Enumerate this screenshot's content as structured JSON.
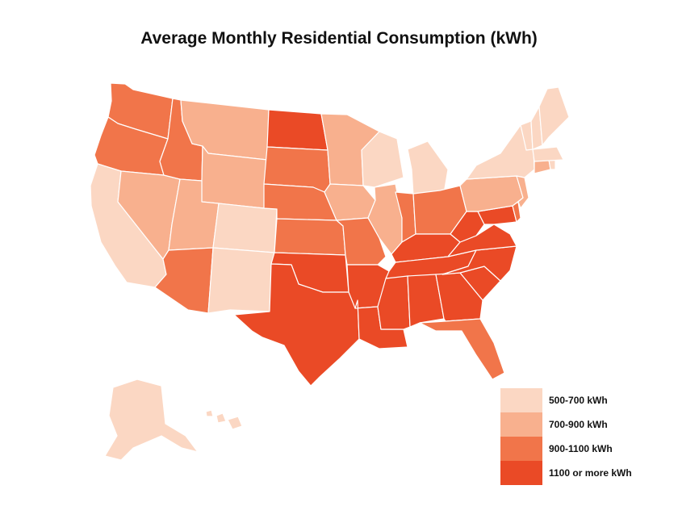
{
  "title": "Average Monthly Residential Consumption (kWh)",
  "colors": {
    "c1": "#fbd7c3",
    "c2": "#f8b08e",
    "c3": "#f1754a",
    "c4": "#ea4a26",
    "bg": "#ffffff",
    "border": "#ffffff"
  },
  "legend": [
    {
      "label": "500-700 kWh",
      "color_key": "c1"
    },
    {
      "label": "700-900 kWh",
      "color_key": "c2"
    },
    {
      "label": "900-1100 kWh",
      "color_key": "c3"
    },
    {
      "label": "1100 or more kWh",
      "color_key": "c4"
    }
  ],
  "states": [
    {
      "name": "Washington",
      "class": "c3"
    },
    {
      "name": "Oregon",
      "class": "c3"
    },
    {
      "name": "California",
      "class": "c1"
    },
    {
      "name": "Nevada",
      "class": "c2"
    },
    {
      "name": "Idaho",
      "class": "c3"
    },
    {
      "name": "Montana",
      "class": "c2"
    },
    {
      "name": "Wyoming",
      "class": "c2"
    },
    {
      "name": "Utah",
      "class": "c2"
    },
    {
      "name": "Colorado",
      "class": "c1"
    },
    {
      "name": "Arizona",
      "class": "c3"
    },
    {
      "name": "New Mexico",
      "class": "c1"
    },
    {
      "name": "North Dakota",
      "class": "c4"
    },
    {
      "name": "South Dakota",
      "class": "c3"
    },
    {
      "name": "Nebraska",
      "class": "c3"
    },
    {
      "name": "Kansas",
      "class": "c3"
    },
    {
      "name": "Oklahoma",
      "class": "c4"
    },
    {
      "name": "Texas",
      "class": "c4"
    },
    {
      "name": "Minnesota",
      "class": "c2"
    },
    {
      "name": "Iowa",
      "class": "c2"
    },
    {
      "name": "Missouri",
      "class": "c3"
    },
    {
      "name": "Arkansas",
      "class": "c4"
    },
    {
      "name": "Louisiana",
      "class": "c4"
    },
    {
      "name": "Wisconsin",
      "class": "c1"
    },
    {
      "name": "Illinois",
      "class": "c2"
    },
    {
      "name": "Michigan",
      "class": "c1"
    },
    {
      "name": "Indiana",
      "class": "c3"
    },
    {
      "name": "Ohio",
      "class": "c3"
    },
    {
      "name": "Kentucky",
      "class": "c4"
    },
    {
      "name": "Tennessee",
      "class": "c4"
    },
    {
      "name": "Mississippi",
      "class": "c4"
    },
    {
      "name": "Alabama",
      "class": "c4"
    },
    {
      "name": "Georgia",
      "class": "c4"
    },
    {
      "name": "Florida",
      "class": "c3"
    },
    {
      "name": "South Carolina",
      "class": "c4"
    },
    {
      "name": "North Carolina",
      "class": "c4"
    },
    {
      "name": "Virginia",
      "class": "c4"
    },
    {
      "name": "West Virginia",
      "class": "c4"
    },
    {
      "name": "Maryland",
      "class": "c4"
    },
    {
      "name": "Delaware",
      "class": "c3"
    },
    {
      "name": "Pennsylvania",
      "class": "c2"
    },
    {
      "name": "New Jersey",
      "class": "c2"
    },
    {
      "name": "New York",
      "class": "c1"
    },
    {
      "name": "Connecticut",
      "class": "c2"
    },
    {
      "name": "Rhode Island",
      "class": "c1"
    },
    {
      "name": "Massachusetts",
      "class": "c1"
    },
    {
      "name": "Vermont",
      "class": "c1"
    },
    {
      "name": "New Hampshire",
      "class": "c1"
    },
    {
      "name": "Maine",
      "class": "c1"
    },
    {
      "name": "Alaska",
      "class": "c1"
    },
    {
      "name": "Hawaii",
      "class": "c1"
    }
  ]
}
